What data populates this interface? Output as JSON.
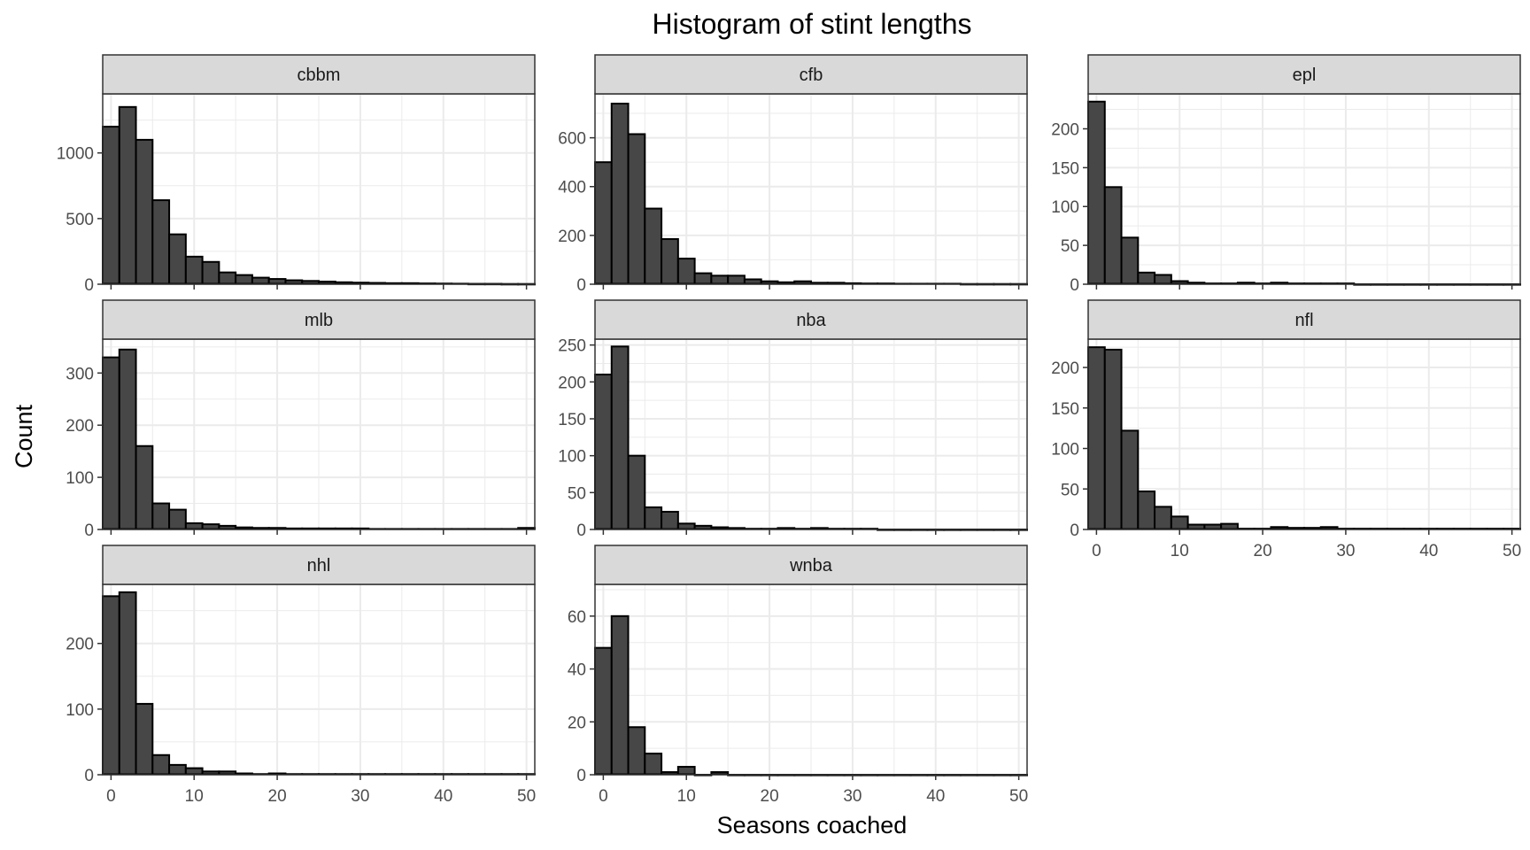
{
  "chart_data": {
    "type": "bar",
    "chart_subtype": "faceted-histogram",
    "title": "Histogram of stint lengths",
    "xlabel": "Seasons coached",
    "ylabel": "Count",
    "bin_width": 2,
    "bin_centers": [
      0,
      2,
      4,
      6,
      8,
      10,
      12,
      14,
      16,
      18,
      20,
      22,
      24,
      26,
      28,
      30,
      32,
      34,
      36,
      38,
      40,
      42,
      44,
      46,
      48,
      50
    ],
    "xlim": [
      -1,
      51
    ],
    "x_ticks": [
      0,
      10,
      20,
      30,
      40,
      50
    ],
    "grid": true,
    "colors": {
      "bar_fill": "#474747",
      "bar_outline": "#000000",
      "strip_fill": "#d9d9d9",
      "grid": "#ebebeb",
      "panel_border": "#333333"
    },
    "facets": [
      {
        "name": "cbbm",
        "ylim": [
          0,
          1450
        ],
        "y_ticks": [
          0,
          500,
          1000
        ],
        "values": [
          1200,
          1350,
          1100,
          640,
          380,
          210,
          170,
          90,
          70,
          50,
          40,
          30,
          25,
          20,
          15,
          12,
          10,
          8,
          8,
          6,
          5,
          4,
          3,
          3,
          2,
          2
        ]
      },
      {
        "name": "cfb",
        "ylim": [
          0,
          780
        ],
        "y_ticks": [
          0,
          200,
          400,
          600
        ],
        "values": [
          500,
          740,
          615,
          310,
          185,
          105,
          45,
          35,
          35,
          20,
          12,
          8,
          12,
          6,
          6,
          4,
          3,
          3,
          2,
          2,
          2,
          2,
          1,
          1,
          1,
          1
        ]
      },
      {
        "name": "epl",
        "ylim": [
          0,
          245
        ],
        "y_ticks": [
          0,
          50,
          100,
          150,
          200
        ],
        "values": [
          235,
          125,
          60,
          15,
          12,
          4,
          2,
          1,
          1,
          2,
          1,
          2,
          1,
          1,
          1,
          1,
          0,
          0,
          0,
          0,
          0,
          0,
          0,
          0,
          0,
          0
        ]
      },
      {
        "name": "mlb",
        "ylim": [
          0,
          365
        ],
        "y_ticks": [
          0,
          100,
          200,
          300
        ],
        "values": [
          330,
          345,
          160,
          50,
          38,
          12,
          10,
          7,
          4,
          3,
          3,
          2,
          2,
          2,
          2,
          2,
          1,
          1,
          1,
          1,
          1,
          1,
          1,
          1,
          1,
          3
        ]
      },
      {
        "name": "nba",
        "ylim": [
          0,
          258
        ],
        "y_ticks": [
          0,
          50,
          100,
          150,
          200,
          250
        ],
        "values": [
          210,
          248,
          100,
          30,
          24,
          8,
          5,
          3,
          2,
          1,
          1,
          2,
          1,
          2,
          1,
          1,
          1,
          0,
          0,
          0,
          0,
          0,
          0,
          0,
          0,
          0
        ]
      },
      {
        "name": "nfl",
        "ylim": [
          0,
          235
        ],
        "y_ticks": [
          0,
          50,
          100,
          150,
          200
        ],
        "values": [
          225,
          222,
          122,
          47,
          28,
          16,
          6,
          6,
          7,
          1,
          1,
          3,
          2,
          2,
          3,
          1,
          1,
          1,
          1,
          1,
          1,
          1,
          1,
          1,
          1,
          1
        ]
      },
      {
        "name": "nhl",
        "ylim": [
          0,
          290
        ],
        "y_ticks": [
          0,
          100,
          200
        ],
        "values": [
          272,
          278,
          108,
          30,
          15,
          10,
          5,
          5,
          2,
          1,
          2,
          1,
          1,
          1,
          1,
          1,
          1,
          1,
          1,
          1,
          1,
          1,
          1,
          1,
          1,
          1
        ]
      },
      {
        "name": "wnba",
        "ylim": [
          0,
          72
        ],
        "y_ticks": [
          0,
          20,
          40,
          60
        ],
        "values": [
          48,
          60,
          18,
          8,
          1,
          3,
          0,
          1,
          0,
          0,
          0,
          0,
          0,
          0,
          0,
          0,
          0,
          0,
          0,
          0,
          0,
          0,
          0,
          0,
          0,
          0
        ]
      }
    ]
  }
}
